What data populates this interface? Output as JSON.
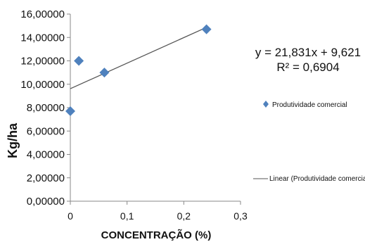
{
  "chart_data": {
    "type": "scatter",
    "xlabel": "CONCENTRAÇÃO (%)",
    "ylabel": "Kg/ha",
    "xlim": [
      0,
      0.3
    ],
    "ylim": [
      0,
      16
    ],
    "x_ticks": [
      0,
      0.1,
      0.2,
      0.3
    ],
    "x_tick_labels": [
      "0",
      "0,1",
      "0,2",
      "0,3"
    ],
    "y_ticks": [
      0,
      2,
      4,
      6,
      8,
      10,
      12,
      14,
      16
    ],
    "y_tick_labels": [
      "0,00000",
      "2,00000",
      "4,00000",
      "6,00000",
      "8,00000",
      "10,00000",
      "12,00000",
      "14,00000",
      "16,00000"
    ],
    "series": [
      {
        "name": "Produtividade comercial",
        "marker": "diamond",
        "color": "#4F81BD",
        "points": [
          {
            "x": 0,
            "y": 7.7
          },
          {
            "x": 0.015,
            "y": 12.0
          },
          {
            "x": 0.06,
            "y": 11.0
          },
          {
            "x": 0.24,
            "y": 14.7
          }
        ]
      }
    ],
    "trendline": {
      "name": "Linear (Produtividade comercial)",
      "type": "linear",
      "slope": 21.831,
      "intercept": 9.621,
      "x_range": [
        0,
        0.24
      ],
      "color": "#555555"
    },
    "annotations": {
      "equation": "y = 21,831x + 9,621",
      "r_squared": "R² = 0,6904"
    },
    "legend": {
      "placement": "right",
      "items": [
        "Produtividade comercial",
        "Linear (Produtividade comercial)"
      ]
    },
    "grid": false
  }
}
